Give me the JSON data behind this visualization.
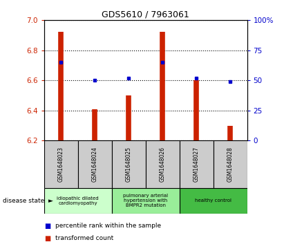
{
  "title": "GDS5610 / 7963061",
  "samples": [
    "GSM1648023",
    "GSM1648024",
    "GSM1648025",
    "GSM1648026",
    "GSM1648027",
    "GSM1648028"
  ],
  "bar_values": [
    6.92,
    6.41,
    6.5,
    6.92,
    6.6,
    6.3
  ],
  "percentile_values": [
    65,
    50,
    52,
    65,
    52,
    49
  ],
  "bar_bottom": 6.2,
  "ylim_left": [
    6.2,
    7.0
  ],
  "ylim_right": [
    0,
    100
  ],
  "yticks_left": [
    6.2,
    6.4,
    6.6,
    6.8,
    7.0
  ],
  "yticks_right": [
    0,
    25,
    50,
    75,
    100
  ],
  "bar_color": "#cc2200",
  "dot_color": "#0000cc",
  "disease_groups": [
    {
      "label": "idiopathic dilated\ncardiomyopathy",
      "indices": [
        0,
        1
      ],
      "color": "#ccffcc"
    },
    {
      "label": "pulmonary arterial\nhypertension with\nBMPR2 mutation",
      "indices": [
        2,
        3
      ],
      "color": "#99ee99"
    },
    {
      "label": "healthy control",
      "indices": [
        4,
        5
      ],
      "color": "#44bb44"
    }
  ],
  "xlabel_label": "disease state",
  "legend_bar_label": "transformed count",
  "legend_dot_label": "percentile rank within the sample",
  "bar_color_legend": "#cc2200",
  "dot_color_legend": "#0000cc",
  "tick_color_left": "#cc2200",
  "tick_color_right": "#0000cc",
  "sample_bg_color": "#cccccc"
}
